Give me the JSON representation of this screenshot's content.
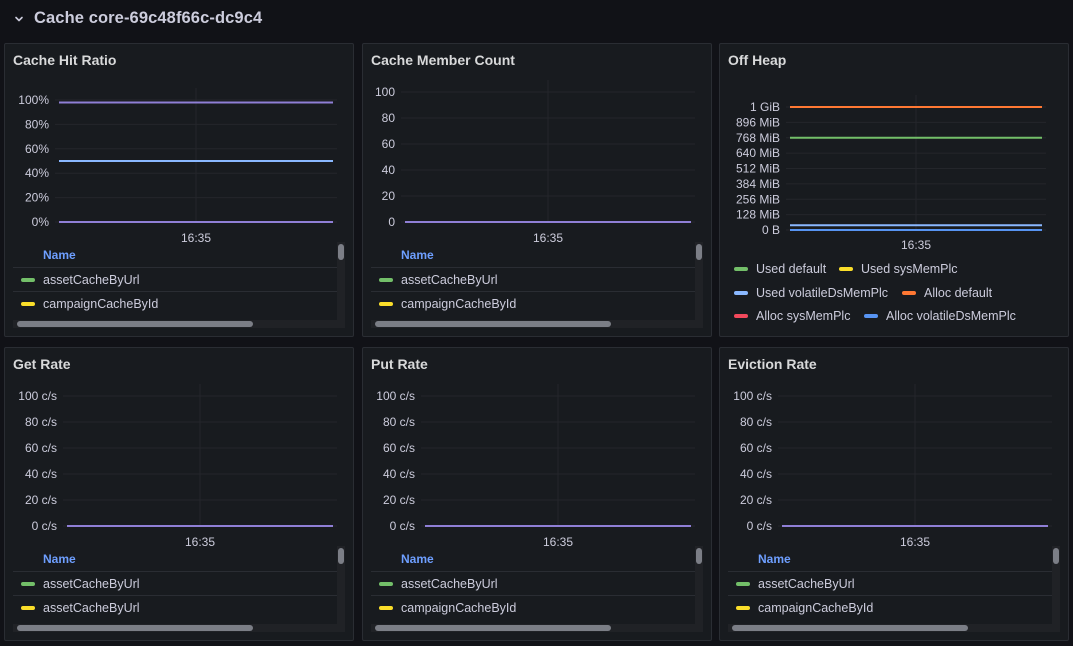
{
  "row": {
    "title": "Cache core-69c48f66c-dc9c4"
  },
  "colors": {
    "green": "#73bf69",
    "yellow": "#fade2a",
    "purple": "#8f7fd6",
    "lightblue": "#8ab8ff",
    "orange": "#ff7833",
    "red": "#f2495c",
    "blue": "#5794f2"
  },
  "panels": {
    "hit_ratio": {
      "title": "Cache Hit Ratio",
      "legend_header": "Name",
      "legend": [
        {
          "label": "assetCacheByUrl",
          "color": "#73bf69"
        },
        {
          "label": "campaignCacheById",
          "color": "#fade2a"
        }
      ]
    },
    "member_count": {
      "title": "Cache Member Count",
      "legend_header": "Name",
      "legend": [
        {
          "label": "assetCacheByUrl",
          "color": "#73bf69"
        },
        {
          "label": "campaignCacheById",
          "color": "#fade2a"
        }
      ]
    },
    "off_heap": {
      "title": "Off Heap",
      "legend": [
        {
          "label": "Used default",
          "color": "#73bf69"
        },
        {
          "label": "Used sysMemPlc",
          "color": "#fade2a"
        },
        {
          "label": "Used volatileDsMemPlc",
          "color": "#8ab8ff"
        },
        {
          "label": "Alloc default",
          "color": "#ff7833"
        },
        {
          "label": "Alloc sysMemPlc",
          "color": "#f2495c"
        },
        {
          "label": "Alloc volatileDsMemPlc",
          "color": "#5794f2"
        }
      ]
    },
    "get_rate": {
      "title": "Get Rate",
      "legend_header": "Name",
      "legend": [
        {
          "label": "assetCacheByUrl",
          "color": "#73bf69"
        },
        {
          "label": "assetCacheByUrl",
          "color": "#fade2a"
        }
      ]
    },
    "put_rate": {
      "title": "Put Rate",
      "legend_header": "Name",
      "legend": [
        {
          "label": "assetCacheByUrl",
          "color": "#73bf69"
        },
        {
          "label": "campaignCacheById",
          "color": "#fade2a"
        }
      ]
    },
    "eviction_rate": {
      "title": "Eviction Rate",
      "legend_header": "Name",
      "legend": [
        {
          "label": "assetCacheByUrl",
          "color": "#73bf69"
        },
        {
          "label": "campaignCacheById",
          "color": "#fade2a"
        }
      ]
    }
  },
  "chart_data": [
    {
      "id": "hit_ratio",
      "type": "line",
      "y_ticks": [
        "0%",
        "20%",
        "40%",
        "60%",
        "80%",
        "100%"
      ],
      "ylim": [
        0,
        100
      ],
      "x_tick": "16:35",
      "grid": true,
      "series": [
        {
          "color": "#8f7fd6",
          "values": [
            98,
            98
          ]
        },
        {
          "color": "#8ab8ff",
          "values": [
            50,
            50
          ]
        },
        {
          "color": "#8f7fd6",
          "values": [
            0,
            0
          ]
        }
      ]
    },
    {
      "id": "member_count",
      "type": "line",
      "y_ticks": [
        "0",
        "20",
        "40",
        "60",
        "80",
        "100"
      ],
      "ylim": [
        0,
        100
      ],
      "x_tick": "16:35",
      "grid": true,
      "series": [
        {
          "color": "#8f7fd6",
          "values": [
            0,
            0
          ]
        }
      ]
    },
    {
      "id": "off_heap",
      "type": "line",
      "y_ticks": [
        "0 B",
        "128 MiB",
        "256 MiB",
        "384 MiB",
        "512 MiB",
        "640 MiB",
        "768 MiB",
        "896 MiB",
        "1 GiB"
      ],
      "ylim": [
        0,
        1024
      ],
      "y_unit": "MiB",
      "x_tick": "16:35",
      "grid": true,
      "series": [
        {
          "name": "Alloc default",
          "color": "#ff7833",
          "values": [
            1024,
            1024
          ]
        },
        {
          "name": "Used default",
          "color": "#73bf69",
          "values": [
            768,
            768
          ]
        },
        {
          "name": "Used volatileDsMemPlc",
          "color": "#8ab8ff",
          "values": [
            40,
            40
          ]
        },
        {
          "name": "Alloc volatileDsMemPlc",
          "color": "#5794f2",
          "values": [
            0,
            0
          ]
        }
      ]
    },
    {
      "id": "get_rate",
      "type": "line",
      "y_ticks": [
        "0 c/s",
        "20 c/s",
        "40 c/s",
        "60 c/s",
        "80 c/s",
        "100 c/s"
      ],
      "ylim": [
        0,
        100
      ],
      "x_tick": "16:35",
      "grid": true,
      "series": [
        {
          "color": "#8f7fd6",
          "values": [
            0,
            0
          ]
        }
      ]
    },
    {
      "id": "put_rate",
      "type": "line",
      "y_ticks": [
        "0 c/s",
        "20 c/s",
        "40 c/s",
        "60 c/s",
        "80 c/s",
        "100 c/s"
      ],
      "ylim": [
        0,
        100
      ],
      "x_tick": "16:35",
      "grid": true,
      "series": [
        {
          "color": "#8f7fd6",
          "values": [
            0,
            0
          ]
        }
      ]
    },
    {
      "id": "eviction_rate",
      "type": "line",
      "y_ticks": [
        "0 c/s",
        "20 c/s",
        "40 c/s",
        "60 c/s",
        "80 c/s",
        "100 c/s"
      ],
      "ylim": [
        0,
        100
      ],
      "x_tick": "16:35",
      "grid": true,
      "series": [
        {
          "color": "#8f7fd6",
          "values": [
            0,
            0
          ]
        }
      ]
    }
  ]
}
